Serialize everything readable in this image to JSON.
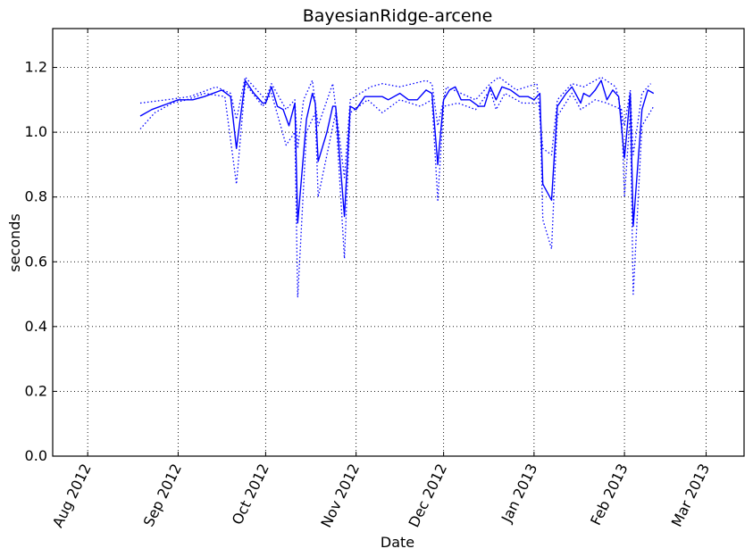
{
  "chart_data": {
    "type": "line",
    "title": "BayesianRidge-arcene",
    "xlabel": "Date",
    "ylabel": "seconds",
    "ylim": [
      0,
      1.32
    ],
    "xlim": [
      "2012-07-20",
      "2013-03-14"
    ],
    "grid": true,
    "x_ticks": [
      {
        "date": "2012-08-01",
        "label": "Aug 2012"
      },
      {
        "date": "2012-09-01",
        "label": "Sep 2012"
      },
      {
        "date": "2012-10-01",
        "label": "Oct 2012"
      },
      {
        "date": "2012-11-01",
        "label": "Nov 2012"
      },
      {
        "date": "2012-12-01",
        "label": "Dec 2012"
      },
      {
        "date": "2013-01-01",
        "label": "Jan 2013"
      },
      {
        "date": "2013-02-01",
        "label": "Feb 2013"
      },
      {
        "date": "2013-03-01",
        "label": "Mar 2013"
      }
    ],
    "y_ticks": [
      "0.0",
      "0.2",
      "0.4",
      "0.6",
      "0.8",
      "1.0",
      "1.2"
    ],
    "series": [
      {
        "role": "mean",
        "style": "solid",
        "color": "#0000ff",
        "points": [
          [
            "2012-08-19",
            1.05
          ],
          [
            "2012-08-23",
            1.07
          ],
          [
            "2012-08-29",
            1.09
          ],
          [
            "2012-09-01",
            1.1
          ],
          [
            "2012-09-06",
            1.1
          ],
          [
            "2012-09-10",
            1.11
          ],
          [
            "2012-09-16",
            1.13
          ],
          [
            "2012-09-19",
            1.11
          ],
          [
            "2012-09-21",
            0.95
          ],
          [
            "2012-09-24",
            1.16
          ],
          [
            "2012-09-27",
            1.12
          ],
          [
            "2012-09-30",
            1.09
          ],
          [
            "2012-10-01",
            1.09
          ],
          [
            "2012-10-03",
            1.14
          ],
          [
            "2012-10-05",
            1.08
          ],
          [
            "2012-10-07",
            1.07
          ],
          [
            "2012-10-09",
            1.02
          ],
          [
            "2012-10-11",
            1.09
          ],
          [
            "2012-10-12",
            0.72
          ],
          [
            "2012-10-15",
            1.04
          ],
          [
            "2012-10-17",
            1.12
          ],
          [
            "2012-10-18",
            1.09
          ],
          [
            "2012-10-19",
            0.91
          ],
          [
            "2012-10-22",
            1.0
          ],
          [
            "2012-10-24",
            1.08
          ],
          [
            "2012-10-25",
            1.08
          ],
          [
            "2012-10-28",
            0.74
          ],
          [
            "2012-10-30",
            1.08
          ],
          [
            "2012-11-01",
            1.07
          ],
          [
            "2012-11-04",
            1.11
          ],
          [
            "2012-11-07",
            1.11
          ],
          [
            "2012-11-10",
            1.11
          ],
          [
            "2012-11-12",
            1.1
          ],
          [
            "2012-11-16",
            1.12
          ],
          [
            "2012-11-19",
            1.1
          ],
          [
            "2012-11-22",
            1.1
          ],
          [
            "2012-11-25",
            1.13
          ],
          [
            "2012-11-27",
            1.12
          ],
          [
            "2012-11-29",
            0.9
          ],
          [
            "2012-12-01",
            1.1
          ],
          [
            "2012-12-03",
            1.13
          ],
          [
            "2012-12-05",
            1.14
          ],
          [
            "2012-12-07",
            1.1
          ],
          [
            "2012-12-10",
            1.1
          ],
          [
            "2012-12-13",
            1.08
          ],
          [
            "2012-12-15",
            1.08
          ],
          [
            "2012-12-17",
            1.14
          ],
          [
            "2012-12-19",
            1.1
          ],
          [
            "2012-12-21",
            1.14
          ],
          [
            "2012-12-24",
            1.13
          ],
          [
            "2012-12-27",
            1.11
          ],
          [
            "2012-12-30",
            1.11
          ],
          [
            "2013-01-01",
            1.1
          ],
          [
            "2013-01-03",
            1.12
          ],
          [
            "2013-01-04",
            0.84
          ],
          [
            "2013-01-07",
            0.79
          ],
          [
            "2013-01-09",
            1.08
          ],
          [
            "2013-01-12",
            1.12
          ],
          [
            "2013-01-14",
            1.14
          ],
          [
            "2013-01-17",
            1.09
          ],
          [
            "2013-01-18",
            1.12
          ],
          [
            "2013-01-20",
            1.11
          ],
          [
            "2013-01-22",
            1.13
          ],
          [
            "2013-01-24",
            1.16
          ],
          [
            "2013-01-26",
            1.1
          ],
          [
            "2013-01-28",
            1.13
          ],
          [
            "2013-01-30",
            1.11
          ],
          [
            "2013-02-01",
            0.92
          ],
          [
            "2013-02-03",
            1.12
          ],
          [
            "2013-02-04",
            0.71
          ],
          [
            "2013-02-07",
            1.07
          ],
          [
            "2013-02-09",
            1.13
          ],
          [
            "2013-02-11",
            1.12
          ]
        ]
      },
      {
        "role": "lower-bound",
        "style": "dotted",
        "color": "#0000ff",
        "points": [
          [
            "2012-08-19",
            1.01
          ],
          [
            "2012-08-24",
            1.06
          ],
          [
            "2012-08-30",
            1.09
          ],
          [
            "2012-09-04",
            1.1
          ],
          [
            "2012-09-10",
            1.12
          ],
          [
            "2012-09-17",
            1.11
          ],
          [
            "2012-09-21",
            0.84
          ],
          [
            "2012-09-24",
            1.15
          ],
          [
            "2012-09-30",
            1.08
          ],
          [
            "2012-10-03",
            1.12
          ],
          [
            "2012-10-08",
            0.96
          ],
          [
            "2012-10-11",
            1.0
          ],
          [
            "2012-10-12",
            0.49
          ],
          [
            "2012-10-15",
            1.0
          ],
          [
            "2012-10-18",
            1.06
          ],
          [
            "2012-10-19",
            0.8
          ],
          [
            "2012-10-25",
            1.06
          ],
          [
            "2012-10-28",
            0.61
          ],
          [
            "2012-10-30",
            1.06
          ],
          [
            "2012-11-05",
            1.1
          ],
          [
            "2012-11-10",
            1.06
          ],
          [
            "2012-11-16",
            1.1
          ],
          [
            "2012-11-23",
            1.08
          ],
          [
            "2012-11-27",
            1.1
          ],
          [
            "2012-11-29",
            0.79
          ],
          [
            "2012-12-01",
            1.08
          ],
          [
            "2012-12-06",
            1.09
          ],
          [
            "2012-12-12",
            1.07
          ],
          [
            "2012-12-17",
            1.13
          ],
          [
            "2012-12-19",
            1.07
          ],
          [
            "2012-12-22",
            1.12
          ],
          [
            "2012-12-28",
            1.09
          ],
          [
            "2013-01-03",
            1.09
          ],
          [
            "2013-01-04",
            0.73
          ],
          [
            "2013-01-07",
            0.64
          ],
          [
            "2013-01-09",
            1.05
          ],
          [
            "2013-01-14",
            1.12
          ],
          [
            "2013-01-17",
            1.07
          ],
          [
            "2013-01-22",
            1.1
          ],
          [
            "2013-01-26",
            1.09
          ],
          [
            "2013-01-31",
            1.07
          ],
          [
            "2013-02-01",
            0.8
          ],
          [
            "2013-02-03",
            1.06
          ],
          [
            "2013-02-04",
            0.5
          ],
          [
            "2013-02-07",
            1.02
          ],
          [
            "2013-02-11",
            1.08
          ]
        ]
      },
      {
        "role": "upper-bound",
        "style": "dotted",
        "color": "#0000ff",
        "points": [
          [
            "2012-08-19",
            1.09
          ],
          [
            "2012-08-28",
            1.1
          ],
          [
            "2012-09-05",
            1.11
          ],
          [
            "2012-09-14",
            1.14
          ],
          [
            "2012-09-19",
            1.12
          ],
          [
            "2012-09-21",
            1.04
          ],
          [
            "2012-09-24",
            1.17
          ],
          [
            "2012-10-01",
            1.1
          ],
          [
            "2012-10-03",
            1.15
          ],
          [
            "2012-10-08",
            1.07
          ],
          [
            "2012-10-11",
            1.1
          ],
          [
            "2012-10-12",
            0.95
          ],
          [
            "2012-10-14",
            1.1
          ],
          [
            "2012-10-17",
            1.16
          ],
          [
            "2012-10-19",
            1.02
          ],
          [
            "2012-10-24",
            1.15
          ],
          [
            "2012-10-28",
            0.86
          ],
          [
            "2012-10-30",
            1.1
          ],
          [
            "2012-11-06",
            1.14
          ],
          [
            "2012-11-10",
            1.15
          ],
          [
            "2012-11-16",
            1.14
          ],
          [
            "2012-11-25",
            1.16
          ],
          [
            "2012-11-27",
            1.15
          ],
          [
            "2012-11-29",
            1.02
          ],
          [
            "2012-12-02",
            1.14
          ],
          [
            "2012-12-07",
            1.12
          ],
          [
            "2012-12-12",
            1.1
          ],
          [
            "2012-12-17",
            1.15
          ],
          [
            "2012-12-20",
            1.17
          ],
          [
            "2012-12-26",
            1.13
          ],
          [
            "2013-01-02",
            1.15
          ],
          [
            "2013-01-04",
            0.95
          ],
          [
            "2013-01-07",
            0.93
          ],
          [
            "2013-01-09",
            1.1
          ],
          [
            "2013-01-14",
            1.15
          ],
          [
            "2013-01-18",
            1.14
          ],
          [
            "2013-01-24",
            1.17
          ],
          [
            "2013-01-29",
            1.14
          ],
          [
            "2013-02-01",
            1.02
          ],
          [
            "2013-02-03",
            1.13
          ],
          [
            "2013-02-04",
            0.93
          ],
          [
            "2013-02-07",
            1.12
          ],
          [
            "2013-02-10",
            1.15
          ]
        ]
      }
    ]
  }
}
